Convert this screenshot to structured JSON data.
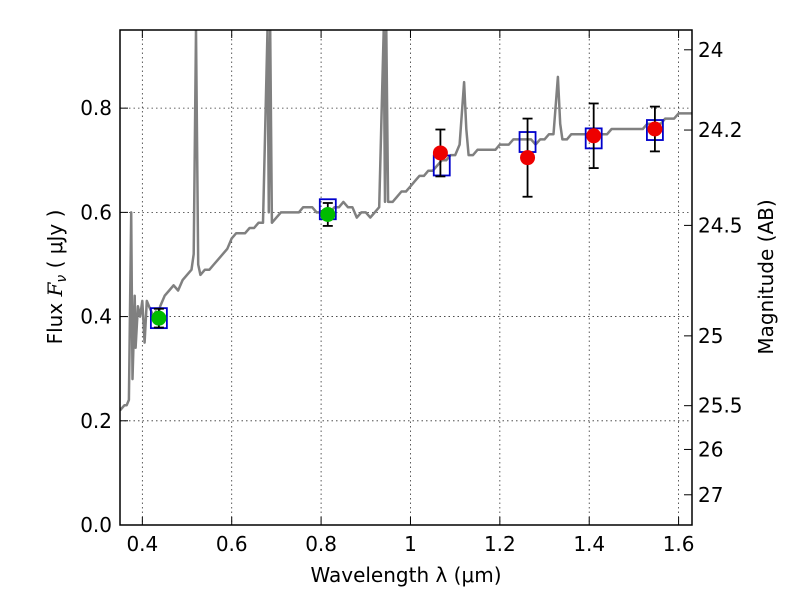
{
  "chart_data": {
    "type": "scatter",
    "xlabel": "Wavelength  λ (μm)",
    "ylabel": "Flux  F_ν  ( μJy )",
    "ylabel_parts": {
      "prefix": "Flux  ",
      "symbol": "F",
      "sub": "ν",
      "suffix": "  ( μJy )"
    },
    "y2label": "Magnitude (AB)",
    "xlim": [
      0.35,
      1.63
    ],
    "ylim": [
      0.0,
      0.95
    ],
    "grid": true,
    "x_ticks": [
      0.4,
      0.6,
      0.8,
      1.0,
      1.2,
      1.4,
      1.6
    ],
    "x_tick_labels": [
      "0.4",
      "0.6",
      "0.8",
      "1",
      "1.2",
      "1.4",
      "1.6"
    ],
    "y_ticks": [
      0.0,
      0.2,
      0.4,
      0.6,
      0.8
    ],
    "y_tick_labels": [
      "0.0",
      "0.2",
      "0.4",
      "0.6",
      "0.8"
    ],
    "y2_ticks": [
      {
        "label": "24",
        "flux": 0.912
      },
      {
        "label": "24.2",
        "flux": 0.758
      },
      {
        "label": "24.5",
        "flux": 0.575
      },
      {
        "label": "25",
        "flux": 0.363
      },
      {
        "label": "25.5",
        "flux": 0.229
      },
      {
        "label": "26",
        "flux": 0.145
      },
      {
        "label": "27",
        "flux": 0.058
      }
    ],
    "colors": {
      "spectrum": "#808080",
      "model_box": "#0000cc",
      "obs_green": "#00bb00",
      "obs_red": "#ee0000",
      "errorbar": "#000000"
    },
    "series": [
      {
        "kind": "model",
        "x": [
          0.437,
          0.815,
          1.07,
          1.262,
          1.41,
          1.547
        ],
        "y": [
          0.397,
          0.606,
          0.69,
          0.735,
          0.742,
          0.758
        ]
      },
      {
        "kind": "observed",
        "color": "green",
        "x": [
          0.437,
          0.815
        ],
        "y": [
          0.397,
          0.596
        ],
        "yerr": [
          0.018,
          0.022
        ]
      },
      {
        "kind": "observed",
        "color": "red",
        "x": [
          1.067,
          1.262,
          1.41,
          1.547
        ],
        "y": [
          0.714,
          0.705,
          0.747,
          0.76
        ],
        "yerr": [
          0.045,
          0.075,
          0.062,
          0.043
        ]
      }
    ],
    "spectrum": {
      "x": [
        0.35,
        0.355,
        0.36,
        0.365,
        0.37,
        0.375,
        0.378,
        0.38,
        0.383,
        0.385,
        0.39,
        0.395,
        0.4,
        0.405,
        0.41,
        0.415,
        0.42,
        0.425,
        0.43,
        0.435,
        0.44,
        0.445,
        0.45,
        0.46,
        0.47,
        0.48,
        0.49,
        0.5,
        0.51,
        0.515,
        0.52,
        0.525,
        0.53,
        0.54,
        0.55,
        0.56,
        0.57,
        0.58,
        0.59,
        0.6,
        0.61,
        0.62,
        0.63,
        0.64,
        0.65,
        0.66,
        0.67,
        0.68,
        0.683,
        0.686,
        0.69,
        0.7,
        0.71,
        0.72,
        0.73,
        0.74,
        0.75,
        0.76,
        0.77,
        0.78,
        0.79,
        0.8,
        0.81,
        0.82,
        0.83,
        0.84,
        0.85,
        0.86,
        0.87,
        0.88,
        0.89,
        0.9,
        0.91,
        0.92,
        0.93,
        0.94,
        0.943,
        0.946,
        0.95,
        0.96,
        0.97,
        0.98,
        0.99,
        1.0,
        1.01,
        1.02,
        1.03,
        1.04,
        1.05,
        1.06,
        1.07,
        1.08,
        1.09,
        1.1,
        1.11,
        1.12,
        1.125,
        1.13,
        1.14,
        1.15,
        1.16,
        1.17,
        1.18,
        1.19,
        1.2,
        1.21,
        1.22,
        1.23,
        1.24,
        1.25,
        1.26,
        1.27,
        1.28,
        1.29,
        1.3,
        1.31,
        1.32,
        1.33,
        1.335,
        1.34,
        1.35,
        1.36,
        1.37,
        1.38,
        1.39,
        1.4,
        1.41,
        1.42,
        1.43,
        1.44,
        1.45,
        1.46,
        1.47,
        1.48,
        1.49,
        1.5,
        1.51,
        1.52,
        1.53,
        1.54,
        1.55,
        1.56,
        1.57,
        1.58,
        1.59,
        1.6,
        1.61,
        1.62,
        1.63
      ],
      "y": [
        0.22,
        0.225,
        0.23,
        0.23,
        0.24,
        0.6,
        0.28,
        0.34,
        0.44,
        0.34,
        0.42,
        0.4,
        0.43,
        0.35,
        0.43,
        0.42,
        0.41,
        0.4,
        0.41,
        0.4,
        0.42,
        0.43,
        0.44,
        0.45,
        0.46,
        0.45,
        0.47,
        0.48,
        0.49,
        0.52,
        0.95,
        0.5,
        0.48,
        0.49,
        0.49,
        0.5,
        0.51,
        0.52,
        0.53,
        0.55,
        0.56,
        0.56,
        0.56,
        0.57,
        0.57,
        0.58,
        0.58,
        0.95,
        0.6,
        0.95,
        0.58,
        0.59,
        0.6,
        0.6,
        0.6,
        0.6,
        0.6,
        0.61,
        0.61,
        0.61,
        0.6,
        0.6,
        0.6,
        0.6,
        0.61,
        0.61,
        0.62,
        0.61,
        0.61,
        0.59,
        0.6,
        0.6,
        0.59,
        0.6,
        0.61,
        0.95,
        0.62,
        0.95,
        0.62,
        0.62,
        0.63,
        0.64,
        0.64,
        0.65,
        0.66,
        0.67,
        0.67,
        0.68,
        0.68,
        0.69,
        0.7,
        0.7,
        0.71,
        0.71,
        0.73,
        0.85,
        0.76,
        0.71,
        0.71,
        0.72,
        0.72,
        0.72,
        0.72,
        0.72,
        0.73,
        0.73,
        0.73,
        0.74,
        0.74,
        0.74,
        0.74,
        0.74,
        0.73,
        0.74,
        0.74,
        0.75,
        0.75,
        0.86,
        0.77,
        0.74,
        0.74,
        0.75,
        0.75,
        0.75,
        0.75,
        0.75,
        0.75,
        0.75,
        0.75,
        0.75,
        0.76,
        0.76,
        0.76,
        0.76,
        0.76,
        0.76,
        0.76,
        0.76,
        0.77,
        0.77,
        0.77,
        0.77,
        0.78,
        0.78,
        0.78,
        0.79,
        0.79,
        0.79,
        0.79
      ]
    }
  }
}
